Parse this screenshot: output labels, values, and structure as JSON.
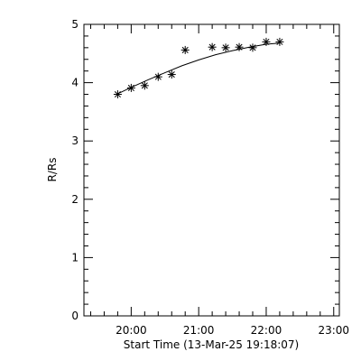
{
  "chart_data": {
    "type": "scatter",
    "xlabel": "Start Time (13-Mar-25 19:18:07)",
    "ylabel": "R/Rs",
    "xlim": [
      "19:18",
      "23:05"
    ],
    "ylim": [
      0,
      5
    ],
    "x_ticks": [
      "20:00",
      "21:00",
      "22:00",
      "23:00"
    ],
    "y_ticks": [
      "0",
      "1",
      "2",
      "3",
      "4",
      "5"
    ],
    "grid": false,
    "marker": "asterisk",
    "series": [
      {
        "points": [
          {
            "t": "19:48",
            "r": 3.8
          },
          {
            "t": "20:00",
            "r": 3.91
          },
          {
            "t": "20:12",
            "r": 3.95
          },
          {
            "t": "20:24",
            "r": 4.1
          },
          {
            "t": "20:36",
            "r": 4.14
          },
          {
            "t": "20:48",
            "r": 4.56
          },
          {
            "t": "21:12",
            "r": 4.61
          },
          {
            "t": "21:24",
            "r": 4.6
          },
          {
            "t": "21:36",
            "r": 4.61
          },
          {
            "t": "21:48",
            "r": 4.6
          },
          {
            "t": "22:00",
            "r": 4.7
          },
          {
            "t": "22:12",
            "r": 4.7
          }
        ]
      }
    ],
    "fit_curve": [
      {
        "t": "19:48",
        "r": 3.81
      },
      {
        "t": "20:00",
        "r": 3.92
      },
      {
        "t": "20:15",
        "r": 4.05
      },
      {
        "t": "20:30",
        "r": 4.17
      },
      {
        "t": "20:45",
        "r": 4.29
      },
      {
        "t": "21:00",
        "r": 4.39
      },
      {
        "t": "21:15",
        "r": 4.48
      },
      {
        "t": "21:30",
        "r": 4.55
      },
      {
        "t": "21:45",
        "r": 4.61
      },
      {
        "t": "22:00",
        "r": 4.66
      },
      {
        "t": "22:12",
        "r": 4.68
      }
    ]
  }
}
